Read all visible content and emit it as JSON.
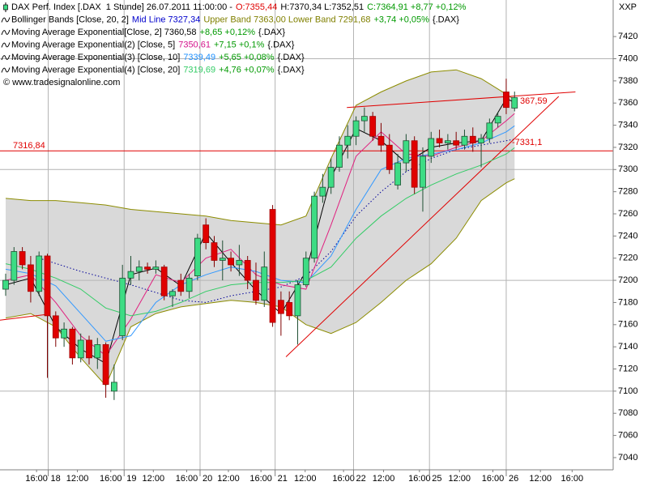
{
  "chart_data": {
    "type": "candlestick",
    "symbol": "XXP",
    "legend": [
      [
        {
          "text": "DAX Perf. Index [.DAX  1 Stunde] 26.07.2011 11:00:00 -",
          "color": "#000000"
        },
        {
          "text": "O:7355,44",
          "color": "#e00000"
        },
        {
          "text": "H:7370,34 L:7352,51",
          "color": "#000000"
        },
        {
          "text": "C:7364,91 +8,77 +0,12%",
          "color": "#009900"
        }
      ],
      [
        {
          "text": "Bollinger Bands [Close, 20, 2]",
          "color": "#000000"
        },
        {
          "text": "Mid Line 7327,34",
          "color": "#0000cc"
        },
        {
          "text": "Upper Band 7363,00 Lower Band 7291,68",
          "color": "#808000"
        },
        {
          "text": "+3,74 +0,05%",
          "color": "#009900"
        },
        {
          "text": "{.DAX}",
          "color": "#000000"
        }
      ],
      [
        {
          "text": "Moving Average Exponential[Close, 2] 7360,58",
          "color": "#000000"
        },
        {
          "text": "+8,65 +0,12%",
          "color": "#009900"
        },
        {
          "text": "{.DAX}",
          "color": "#000000"
        }
      ],
      [
        {
          "text": "Moving Average Exponential(2) [Close, 5]",
          "color": "#000000"
        },
        {
          "text": "7350,61",
          "color": "#d4148c"
        },
        {
          "text": "+7,15 +0,1%",
          "color": "#009900"
        },
        {
          "text": "{.DAX}",
          "color": "#000000"
        }
      ],
      [
        {
          "text": "Moving Average Exponential(3) [Close, 10]",
          "color": "#000000"
        },
        {
          "text": "7339,49",
          "color": "#1e90ff"
        },
        {
          "text": "+5,65 +0,08%",
          "color": "#009900"
        },
        {
          "text": "{.DAX}",
          "color": "#000000"
        }
      ],
      [
        {
          "text": "Moving Average Exponential(4) [Close, 20]",
          "color": "#000000"
        },
        {
          "text": "7319,69",
          "color": "#33cc66"
        },
        {
          "text": "+4,76 +0,07%",
          "color": "#009900"
        },
        {
          "text": "{.DAX}",
          "color": "#000000"
        }
      ],
      [
        {
          "text": "© www.tradesignalonline.com",
          "color": "#000000"
        }
      ]
    ],
    "open": [
      7192,
      7200,
      7226,
      7214,
      7190,
      7222,
      7168,
      7148,
      7156,
      7130,
      7146,
      7130,
      7142,
      7100,
      7150,
      7202,
      7208,
      7212,
      7210,
      7212,
      7186,
      7200,
      7190,
      7204,
      7250,
      7234,
      7218,
      7220,
      7214,
      7218,
      7200,
      7182,
      7264,
      7182,
      7180,
      7168,
      7196,
      7220,
      7276,
      7284,
      7302,
      7322,
      7330,
      7344,
      7348,
      7330,
      7322,
      7286,
      7306,
      7326,
      7284,
      7312,
      7328,
      7324,
      7326,
      7322,
      7330,
      7324,
      7328,
      7342,
      7370,
      7355.44
    ],
    "high": [
      7206,
      7230,
      7230,
      7222,
      7226,
      7224,
      7172,
      7162,
      7158,
      7152,
      7150,
      7148,
      7144,
      7124,
      7214,
      7222,
      7218,
      7216,
      7218,
      7214,
      7192,
      7206,
      7206,
      7242,
      7256,
      7240,
      7236,
      7226,
      7232,
      7222,
      7216,
      7226,
      7268,
      7190,
      7190,
      7200,
      7226,
      7280,
      7296,
      7310,
      7330,
      7340,
      7348,
      7356,
      7352,
      7342,
      7332,
      7314,
      7332,
      7330,
      7320,
      7334,
      7336,
      7332,
      7334,
      7336,
      7338,
      7332,
      7346,
      7352,
      7382,
      7370.34
    ],
    "low": [
      7186,
      7196,
      7210,
      7180,
      7186,
      7112,
      7140,
      7140,
      7124,
      7126,
      7124,
      7120,
      7094,
      7092,
      7146,
      7196,
      7200,
      7206,
      7206,
      7182,
      7176,
      7186,
      7184,
      7200,
      7228,
      7212,
      7200,
      7208,
      7204,
      7192,
      7178,
      7176,
      7158,
      7150,
      7164,
      7142,
      7194,
      7216,
      7270,
      7278,
      7298,
      7310,
      7322,
      7334,
      7326,
      7316,
      7296,
      7282,
      7298,
      7278,
      7262,
      7306,
      7320,
      7318,
      7318,
      7318,
      7316,
      7302,
      7324,
      7338,
      7350,
      7352.51
    ],
    "close": [
      7200,
      7226,
      7214,
      7190,
      7222,
      7168,
      7148,
      7156,
      7130,
      7146,
      7130,
      7142,
      7106,
      7108,
      7202,
      7208,
      7212,
      7210,
      7212,
      7186,
      7190,
      7190,
      7202,
      7238,
      7234,
      7218,
      7220,
      7214,
      7218,
      7200,
      7182,
      7212,
      7162,
      7170,
      7168,
      7196,
      7220,
      7276,
      7284,
      7302,
      7322,
      7330,
      7344,
      7348,
      7330,
      7322,
      7300,
      7306,
      7326,
      7284,
      7312,
      7328,
      7324,
      7326,
      7322,
      7330,
      7324,
      7328,
      7342,
      7348,
      7356,
      7364.91
    ],
    "up_color": "#3ddc84",
    "down_color": "#e00000",
    "bollinger": {
      "fill": "#d9d9d9",
      "color": "#8c8c00",
      "x": [
        0,
        3,
        6,
        9,
        12,
        15,
        18,
        21,
        24,
        27,
        30,
        33,
        36,
        39,
        42,
        45,
        48,
        51,
        54,
        57,
        60,
        61
      ],
      "upper": [
        7274,
        7272,
        7272,
        7270,
        7268,
        7264,
        7262,
        7260,
        7258,
        7254,
        7252,
        7250,
        7258,
        7310,
        7358,
        7370,
        7380,
        7388,
        7390,
        7382,
        7368,
        7363
      ],
      "lower": [
        7166,
        7170,
        7158,
        7130,
        7105,
        7158,
        7170,
        7176,
        7179,
        7182,
        7180,
        7176,
        7160,
        7152,
        7162,
        7180,
        7200,
        7215,
        7238,
        7272,
        7288,
        7291.68
      ],
      "mid": {
        "color": "#000099",
        "x": [
          4,
          9,
          15,
          21,
          24,
          27,
          30,
          33,
          36,
          39,
          42,
          45,
          48,
          51,
          54,
          57,
          61
        ],
        "values": [
          7220,
          7208,
          7196,
          7182,
          7180,
          7186,
          7190,
          7194,
          7204,
          7226,
          7258,
          7280,
          7298,
          7310,
          7318,
          7322,
          7327.34
        ]
      }
    },
    "averages": [
      {
        "color": "#000000",
        "x": [
          0,
          3,
          6,
          9,
          12,
          15,
          18,
          21,
          24,
          27,
          30,
          33,
          36,
          39,
          42,
          45,
          48,
          51,
          54,
          57,
          60,
          61
        ],
        "values": [
          7196,
          7202,
          7158,
          7138,
          7125,
          7205,
          7211,
          7195,
          7243,
          7216,
          7191,
          7170,
          7208,
          7293,
          7337,
          7326,
          7306,
          7320,
          7324,
          7326,
          7364,
          7360.58
        ]
      },
      {
        "color": "#e0207f",
        "x": [
          0,
          3,
          6,
          9,
          12,
          15,
          18,
          21,
          24,
          27,
          30,
          33,
          36,
          39,
          42,
          45,
          48,
          51,
          54,
          57,
          60,
          61
        ],
        "values": [
          7200,
          7205,
          7180,
          7150,
          7132,
          7165,
          7205,
          7198,
          7220,
          7228,
          7205,
          7196,
          7192,
          7250,
          7312,
          7334,
          7314,
          7312,
          7320,
          7326,
          7344,
          7350.61
        ]
      },
      {
        "color": "#3399ff",
        "x": [
          0,
          3,
          6,
          9,
          12,
          15,
          18,
          21,
          24,
          27,
          30,
          33,
          36,
          39,
          42,
          45,
          48,
          51,
          54,
          57,
          60,
          61
        ],
        "values": [
          7210,
          7206,
          7195,
          7170,
          7145,
          7150,
          7180,
          7196,
          7205,
          7212,
          7208,
          7200,
          7198,
          7222,
          7264,
          7300,
          7310,
          7314,
          7318,
          7324,
          7334,
          7339.49
        ]
      },
      {
        "color": "#33cc66",
        "x": [
          0,
          3,
          6,
          9,
          12,
          15,
          18,
          21,
          24,
          27,
          30,
          33,
          36,
          39,
          42,
          45,
          48,
          51,
          54,
          57,
          60,
          61
        ],
        "values": [
          7215,
          7210,
          7202,
          7192,
          7175,
          7168,
          7172,
          7180,
          7190,
          7196,
          7198,
          7198,
          7200,
          7212,
          7238,
          7258,
          7274,
          7286,
          7296,
          7304,
          7314,
          7319.69
        ]
      }
    ],
    "hline": {
      "value": 7316.84,
      "label": "7316,84",
      "color": "#e00000"
    },
    "trendlines": [
      {
        "color": "#e00000",
        "x": [
          -0.68,
          4.66
        ],
        "values": [
          7164,
          7169
        ]
      },
      {
        "color": "#e00000",
        "x": [
          40.9,
          68.3
        ],
        "values": [
          7356,
          7370
        ]
      },
      {
        "color": "#e00000",
        "x": [
          33.6,
          66.3
        ],
        "values": [
          7131,
          7366
        ]
      }
    ],
    "price_labels": [
      {
        "text": "367,59",
        "color": "#e00000"
      },
      {
        "text": "-7331,1",
        "color": "#e00000"
      }
    ],
    "xlim": [
      -0.68,
      72.82
    ],
    "ylim": [
      7029,
      7453
    ],
    "yticks": [
      7040,
      7060,
      7080,
      7100,
      7120,
      7140,
      7160,
      7180,
      7200,
      7220,
      7240,
      7260,
      7280,
      7300,
      7320,
      7340,
      7360,
      7380,
      7400,
      7420
    ],
    "ygrid": [
      7100,
      7200,
      7300,
      7400
    ],
    "xticks": [
      {
        "value": 3.7,
        "label": "16:00"
      },
      {
        "value": 8.6,
        "label": "12:00"
      },
      {
        "value": 12.6,
        "label": "16:00"
      },
      {
        "value": 17.7,
        "label": "12:00"
      },
      {
        "value": 21.7,
        "label": "16:00"
      },
      {
        "value": 26.7,
        "label": "12:00"
      },
      {
        "value": 30.6,
        "label": "16:00"
      },
      {
        "value": 35.9,
        "label": "12:00"
      },
      {
        "value": 40.5,
        "label": "16:00"
      },
      {
        "value": 45.3,
        "label": "12:00"
      },
      {
        "value": 49.6,
        "label": "16:00"
      },
      {
        "value": 54.4,
        "label": "12:00"
      },
      {
        "value": 58.4,
        "label": "16:00"
      },
      {
        "value": 64.1,
        "label": "12:00"
      },
      {
        "value": 67.9,
        "label": "16:00"
      }
    ],
    "day_ticks": [
      {
        "value": 5.1,
        "label": "18"
      },
      {
        "value": 14.2,
        "label": "19"
      },
      {
        "value": 23.3,
        "label": "20"
      },
      {
        "value": 32.3,
        "label": "21"
      },
      {
        "value": 41.7,
        "label": "22"
      },
      {
        "value": 50.8,
        "label": "25"
      },
      {
        "value": 60.0,
        "label": "26"
      }
    ],
    "grid": true
  }
}
